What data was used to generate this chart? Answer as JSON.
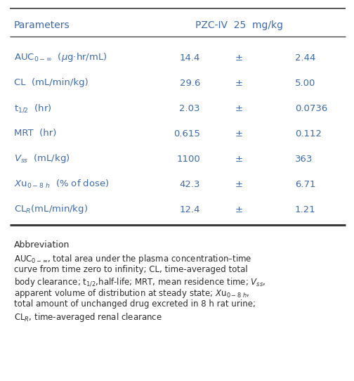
{
  "title": "PZC-IV  25  mg/kg",
  "col_header": "Parameters",
  "row_labels": [
    "AUC$_{0-\\infty}$  ($\\mu$g·hr/mL)",
    "CL  (mL/min/kg)",
    "t$_{1/2}$  (hr)",
    "MRT  (hr)",
    "$\\mathit{V}_{ss}$  (mL/kg)",
    "$\\mathit{X}$u$_{0-8\\ h}$  (% of dose)",
    "CL$_R$(mL/min/kg)"
  ],
  "means": [
    "14.4",
    "29.6",
    "2.03",
    "0.615",
    "1100",
    "42.3",
    "12.4"
  ],
  "sds": [
    "2.44",
    "5.00",
    "0.0736",
    "0.112",
    "363",
    "6.71",
    "1.21"
  ],
  "abbrev_title": "Abbreviation",
  "abbrev_lines": [
    "AUC$_{0-\\infty}$, total area under the plasma concentration–time",
    "curve from time zero to infinity; CL, time-averaged total",
    "body clearance; t$_{1/2}$,half-life; MRT, mean residence time; $\\mathit{V}_{ss}$,",
    "apparent volume of distribution at steady state; $\\mathit{X}$u$_{0-8\\ h}$,",
    "total amount of unchanged drug excreted in 8 h rat urine;",
    "CL$_R$, time-averaged renal clearance"
  ],
  "text_color": "#3d6bad",
  "abbrev_color": "#2d2d2d",
  "line_color": "#3a3a3a",
  "bg_color": "#ffffff",
  "font_size": 9.5,
  "abbrev_font_size": 8.5
}
